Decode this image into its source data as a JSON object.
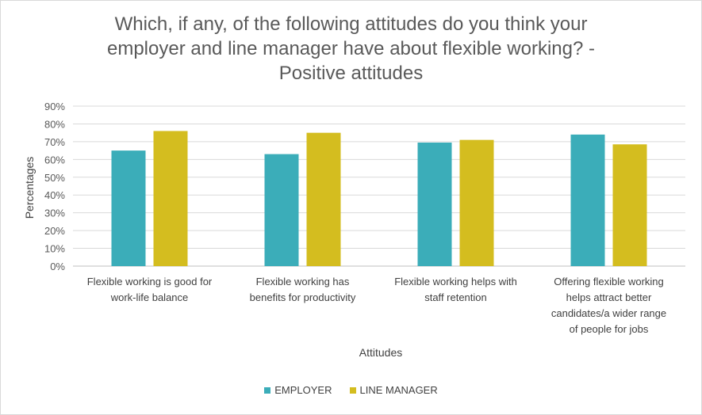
{
  "chart_data": {
    "type": "bar",
    "title_lines": [
      "Which, if any, of the following attitudes do you think your",
      "employer and line manager have about flexible working? -",
      "Positive attitudes"
    ],
    "xlabel": "Attitudes",
    "ylabel": "Percentages",
    "ylim": [
      0,
      90
    ],
    "yticks": [
      "90%",
      "80%",
      "70%",
      "60%",
      "50%",
      "40%",
      "30%",
      "20%",
      "10%",
      "0%"
    ],
    "grid": true,
    "legend_position": "bottom",
    "categories": [
      [
        "Flexible working is good for",
        "work-life balance"
      ],
      [
        "Flexible working has",
        "benefits for productivity"
      ],
      [
        "Flexible working helps with",
        "staff retention"
      ],
      [
        "Offering flexible working",
        "helps attract better",
        "candidates/a wider range",
        "of people for jobs"
      ]
    ],
    "series": [
      {
        "name": "EMPLOYER",
        "color": "#3badb9",
        "values": [
          65,
          63,
          69.5,
          74
        ]
      },
      {
        "name": "LINE MANAGER",
        "color": "#d4bd1f",
        "values": [
          76,
          75,
          71,
          68.5
        ]
      }
    ]
  }
}
